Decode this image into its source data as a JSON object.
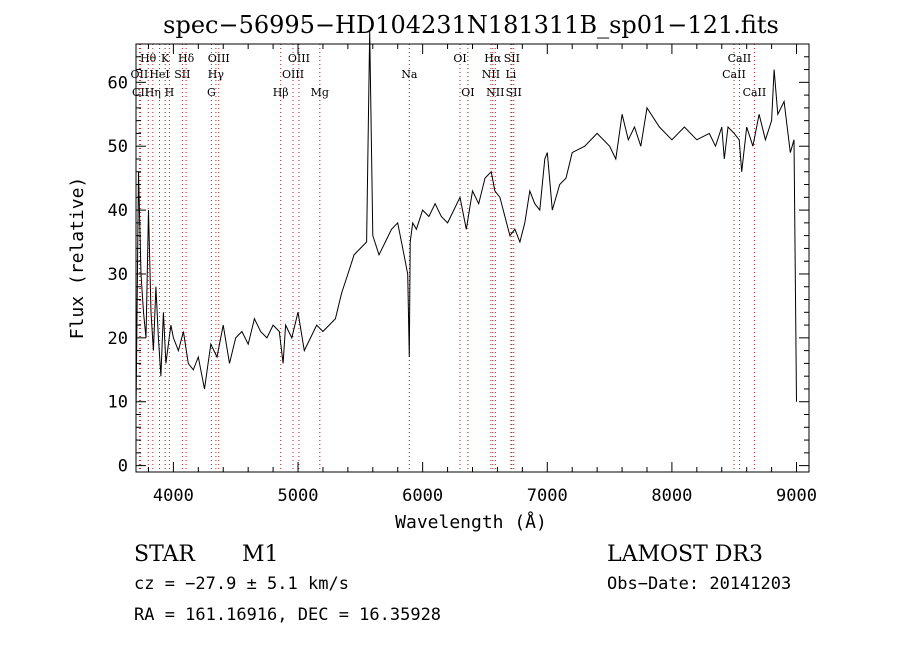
{
  "chart_data": {
    "type": "line",
    "title": "spec−56995−HD104231N181311B_sp01−121.fits",
    "xlabel": "Wavelength (Å)",
    "ylabel": "Flux (relative)",
    "xlim": [
      3700,
      9100
    ],
    "ylim": [
      -1,
      66
    ],
    "x_ticks": [
      4000,
      5000,
      6000,
      7000,
      8000,
      9000
    ],
    "y_ticks": [
      0,
      10,
      20,
      30,
      40,
      50,
      60
    ],
    "series": [
      {
        "x": [
          3700,
          3720,
          3740,
          3760,
          3780,
          3800,
          3820,
          3840,
          3860,
          3880,
          3900,
          3920,
          3940,
          3960,
          3980,
          4000,
          4040,
          4080,
          4120,
          4160,
          4200,
          4250,
          4300,
          4350,
          4400,
          4450,
          4500,
          4550,
          4600,
          4650,
          4700,
          4750,
          4800,
          4850,
          4880,
          4900,
          4950,
          5000,
          5050,
          5100,
          5150,
          5200,
          5250,
          5300,
          5350,
          5400,
          5450,
          5500,
          5550,
          5575,
          5600,
          5650,
          5700,
          5750,
          5800,
          5850,
          5880,
          5893,
          5900,
          5920,
          5950,
          6000,
          6050,
          6100,
          6150,
          6200,
          6250,
          6300,
          6350,
          6400,
          6450,
          6500,
          6550,
          6580,
          6620,
          6660,
          6700,
          6740,
          6780,
          6820,
          6860,
          6900,
          6940,
          6980,
          7000,
          7040,
          7100,
          7150,
          7200,
          7300,
          7400,
          7500,
          7550,
          7600,
          7650,
          7700,
          7750,
          7800,
          7900,
          8000,
          8100,
          8200,
          8300,
          8350,
          8400,
          8420,
          8450,
          8500,
          8540,
          8560,
          8600,
          8650,
          8700,
          8750,
          8800,
          8820,
          8850,
          8900,
          8950,
          8980,
          9000
        ],
        "y": [
          8,
          46,
          30,
          24,
          20,
          40,
          24,
          18,
          28,
          20,
          14,
          24,
          16,
          19,
          22,
          20,
          18,
          21,
          16,
          15,
          17,
          12,
          19,
          17,
          22,
          16,
          20,
          21,
          19,
          23,
          21,
          20,
          22,
          21,
          16,
          22,
          20,
          24,
          18,
          20,
          22,
          21,
          22,
          23,
          27,
          30,
          33,
          34,
          35,
          68,
          36,
          33,
          35,
          37,
          38,
          33,
          30,
          17,
          35,
          38,
          37,
          40,
          39,
          41,
          39,
          38,
          40,
          42,
          37,
          43,
          41,
          45,
          46,
          43,
          42,
          39,
          36,
          37,
          35,
          38,
          43,
          41,
          40,
          48,
          49,
          40,
          44,
          45,
          49,
          50,
          52,
          50,
          48,
          55,
          51,
          53,
          50,
          56,
          53,
          51,
          53,
          51,
          52,
          50,
          53,
          48,
          53,
          52,
          51,
          46,
          53,
          50,
          55,
          51,
          54,
          62,
          55,
          57,
          49,
          51,
          10
        ],
        "color": "#000000"
      }
    ],
    "lines": [
      {
        "label": "Hθ",
        "x": 3798,
        "row": 0
      },
      {
        "label": "OII",
        "x": 3727,
        "row": 1
      },
      {
        "label": "CII",
        "x": 3737,
        "row": 2
      },
      {
        "label": "Hη",
        "x": 3835,
        "row": 2
      },
      {
        "label": "HeI",
        "x": 3889,
        "row": 1
      },
      {
        "label": "K",
        "x": 3934,
        "row": 0
      },
      {
        "label": "H",
        "x": 3968,
        "row": 2
      },
      {
        "label": "SII",
        "x": 4072,
        "row": 1
      },
      {
        "label": "Hδ",
        "x": 4102,
        "row": 0
      },
      {
        "label": "OIII",
        "x": 4364,
        "row": 0
      },
      {
        "label": "Hγ",
        "x": 4341,
        "row": 1
      },
      {
        "label": "G",
        "x": 4305,
        "row": 2
      },
      {
        "label": "Hβ",
        "x": 4861,
        "row": 2
      },
      {
        "label": "OIII",
        "x": 4960,
        "row": 1
      },
      {
        "label": "OIII",
        "x": 5007,
        "row": 0
      },
      {
        "label": "Mg",
        "x": 5175,
        "row": 2
      },
      {
        "label": "Na",
        "x": 5893,
        "row": 1
      },
      {
        "label": "OI",
        "x": 6300,
        "row": 0
      },
      {
        "label": "OI",
        "x": 6363,
        "row": 2
      },
      {
        "label": "NII",
        "x": 6548,
        "row": 1
      },
      {
        "label": "Hα",
        "x": 6563,
        "row": 0
      },
      {
        "label": "NII",
        "x": 6583,
        "row": 2
      },
      {
        "label": "Li",
        "x": 6708,
        "row": 1
      },
      {
        "label": "SII",
        "x": 6716,
        "row": 0
      },
      {
        "label": "SII",
        "x": 6731,
        "row": 2
      },
      {
        "label": "CaII",
        "x": 8498,
        "row": 1
      },
      {
        "label": "CaII",
        "x": 8542,
        "row": 0
      },
      {
        "label": "CaII",
        "x": 8662,
        "row": 2
      }
    ],
    "grid": false,
    "line_marker_color": "#b22222"
  },
  "info": {
    "object_type": "STAR",
    "subclass": "M1",
    "survey": "LAMOST DR3",
    "cz": "cz = −27.9 ± 5.1 km/s",
    "obs_date": "Obs−Date: 20141203",
    "coords": "RA = 161.16916, DEC =  16.35928"
  }
}
